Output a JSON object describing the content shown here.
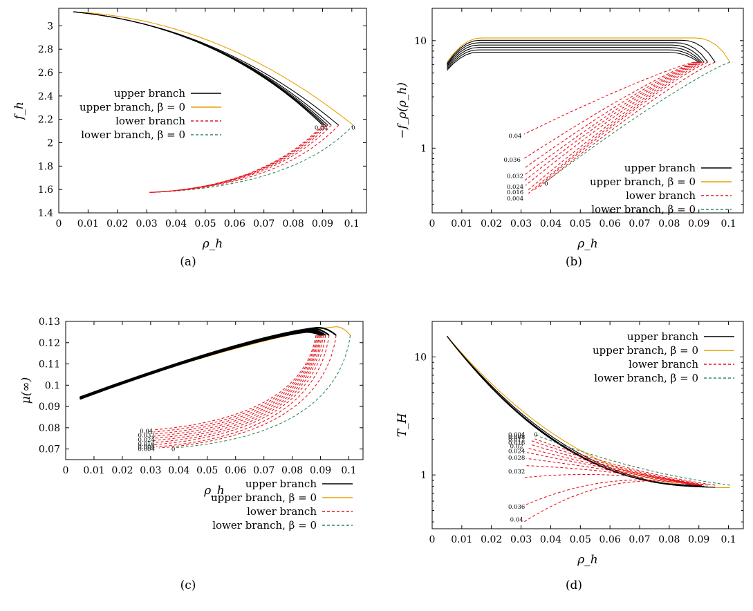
{
  "colors": {
    "upper": "#000000",
    "upper_beta0": "#e8a000",
    "lower": "#e8141e",
    "lower_beta0": "#2e8b57"
  },
  "chart_data": [
    {
      "id": "a",
      "caption": "(a)",
      "type": "line",
      "xlabel": "ρ_h",
      "ylabel": "f_h",
      "xlim": [
        0,
        0.105
      ],
      "ylim": [
        1.4,
        3.15
      ],
      "yscale": "linear",
      "xticks": [
        "0",
        "0.01",
        "0.02",
        "0.03",
        "0.04",
        "0.05",
        "0.06",
        "0.07",
        "0.08",
        "0.09",
        "0.1"
      ],
      "yticks": [
        "1.4",
        "1.6",
        "1.8",
        "2",
        "2.2",
        "2.4",
        "2.6",
        "2.8",
        "3"
      ],
      "legend": [
        "upper branch",
        "upper branch, β = 0",
        "lower branch",
        "lower branch, β = 0"
      ],
      "legend_position": "center-left",
      "upper": {
        "x_start": 0.005,
        "y_start": 3.12,
        "tip_x": [
          0.1005,
          0.0955,
          0.093,
          0.0918,
          0.091,
          0.0905,
          0.09
        ],
        "tip_y": 2.15,
        "x_end": 0.031,
        "y_end": 1.575
      },
      "annotations": [
        {
          "text": "0.04",
          "x": 0.0895,
          "y": 2.13
        },
        {
          "text": "0",
          "x": 0.1005,
          "y": 2.13
        }
      ]
    },
    {
      "id": "b",
      "caption": "(b)",
      "type": "line",
      "xlabel": "ρ_h",
      "ylabel": "−f_ρ(ρ_h)",
      "xlim": [
        0,
        0.105
      ],
      "ylim": [
        0.25,
        20
      ],
      "yscale": "log",
      "xticks": [
        "0",
        "0.01",
        "0.02",
        "0.03",
        "0.04",
        "0.05",
        "0.06",
        "0.07",
        "0.08",
        "0.09",
        "0.1"
      ],
      "yticks": [
        "1",
        "10"
      ],
      "legend": [
        "upper branch",
        "upper branch, β = 0",
        "lower branch",
        "lower branch, β = 0"
      ],
      "legend_position": "bottom-right",
      "upper": {
        "start_x": 0.005,
        "start_y": [
          6.3,
          5.3
        ],
        "top_x": 0.07,
        "top_y": [
          10.6,
          7.8
        ],
        "tip_x": [
          0.1005,
          0.0955,
          0.093,
          0.0918,
          0.091,
          0.0905,
          0.09
        ],
        "tip_y": 6.3
      },
      "lower_end_x": [
        0.038,
        0.036,
        0.034,
        0.0325,
        0.032,
        0.0315,
        0.0312,
        0.031,
        0.031,
        0.031,
        0.031
      ],
      "lower_end_y": [
        0.48,
        0.43,
        0.4,
        0.38,
        0.4,
        0.45,
        0.5,
        0.56,
        0.65,
        0.8,
        1.35
      ],
      "annotations": [
        {
          "text": "0.04",
          "x": 0.028,
          "y": 1.3
        },
        {
          "text": "0.036",
          "x": 0.027,
          "y": 0.78
        },
        {
          "text": "0.032",
          "x": 0.028,
          "y": 0.55
        },
        {
          "text": "0.024",
          "x": 0.028,
          "y": 0.44
        },
        {
          "text": "0.016",
          "x": 0.028,
          "y": 0.39
        },
        {
          "text": "0.004",
          "x": 0.028,
          "y": 0.34
        },
        {
          "text": "0",
          "x": 0.0385,
          "y": 0.47
        }
      ]
    },
    {
      "id": "c",
      "caption": "(c)",
      "type": "line",
      "xlabel": "ρ_h",
      "ylabel": "μ(∞)",
      "xlim": [
        0,
        0.105
      ],
      "ylim": [
        0.065,
        0.13
      ],
      "yscale": "linear",
      "xticks": [
        "0",
        "0.01",
        "0.02",
        "0.03",
        "0.04",
        "0.05",
        "0.06",
        "0.07",
        "0.08",
        "0.09",
        "0.1"
      ],
      "yticks": [
        "0.07",
        "0.08",
        "0.09",
        "0.1",
        "0.11",
        "0.12",
        "0.13"
      ],
      "legend": [
        "upper branch",
        "upper branch, β = 0",
        "lower branch",
        "lower branch, β = 0"
      ],
      "legend_position": "bottom-right",
      "upper": {
        "start_x": 0.005,
        "start_y": [
          0.0945,
          0.0935
        ],
        "top_x": [
          0.0955,
          0.089,
          0.087,
          0.086,
          0.0855,
          0.0852,
          0.085
        ],
        "top_y": [
          0.1275,
          0.125
        ],
        "tip_x": [
          0.1005,
          0.0955,
          0.093,
          0.0918,
          0.091,
          0.0905,
          0.09
        ],
        "tip_y": 0.1235
      },
      "lower_end_x": [
        0.038,
        0.033,
        0.032,
        0.031,
        0.031,
        0.031,
        0.031,
        0.031,
        0.031,
        0.031,
        0.031
      ],
      "lower_end_y": [
        0.0705,
        0.0705,
        0.071,
        0.072,
        0.073,
        0.074,
        0.075,
        0.076,
        0.077,
        0.078,
        0.079
      ],
      "annotations": [
        {
          "text": "0.04",
          "x": 0.0285,
          "y": 0.0785
        },
        {
          "text": "0.032",
          "x": 0.0285,
          "y": 0.0765
        },
        {
          "text": "0.024",
          "x": 0.0285,
          "y": 0.0745
        },
        {
          "text": "0.016",
          "x": 0.0285,
          "y": 0.0725
        },
        {
          "text": "0.008",
          "x": 0.0285,
          "y": 0.0712
        },
        {
          "text": "0.004",
          "x": 0.0285,
          "y": 0.07
        },
        {
          "text": "0",
          "x": 0.038,
          "y": 0.07
        }
      ]
    },
    {
      "id": "d",
      "caption": "(d)",
      "type": "line",
      "xlabel": "ρ_h",
      "ylabel": "T_H",
      "xlim": [
        0,
        0.105
      ],
      "ylim": [
        0.35,
        20
      ],
      "yscale": "log",
      "xticks": [
        "0",
        "0.01",
        "0.02",
        "0.03",
        "0.04",
        "0.05",
        "0.06",
        "0.07",
        "0.08",
        "0.09",
        "0.1"
      ],
      "yticks": [
        "1",
        "10"
      ],
      "legend": [
        "upper branch",
        "upper branch, β = 0",
        "lower branch",
        "lower branch, β = 0"
      ],
      "legend_position": "top-right",
      "upper": {
        "start_x": 0.005,
        "start_y": 15,
        "tip_x": [
          0.1005,
          0.0955,
          0.093,
          0.0918,
          0.091,
          0.0905,
          0.09
        ],
        "tip_y": [
          0.78,
          0.82
        ]
      },
      "lower_end_x": [
        0.0345,
        0.034,
        0.0335,
        0.033,
        0.0325,
        0.032,
        0.0318,
        0.0315,
        0.0312,
        0.031,
        0.031
      ],
      "lower_end_y": [
        2.2,
        2.05,
        1.95,
        1.82,
        1.68,
        1.55,
        1.38,
        1.2,
        0.95,
        0.55,
        0.4
      ],
      "annotations": [
        {
          "text": "0.004",
          "x": 0.0285,
          "y": 2.2
        },
        {
          "text": "0.008",
          "x": 0.0285,
          "y": 2.1
        },
        {
          "text": "0.012",
          "x": 0.0285,
          "y": 2.0
        },
        {
          "text": "0.016",
          "x": 0.0285,
          "y": 1.88
        },
        {
          "text": "0.02",
          "x": 0.0285,
          "y": 1.75
        },
        {
          "text": "0.024",
          "x": 0.0285,
          "y": 1.6
        },
        {
          "text": "0.028",
          "x": 0.0285,
          "y": 1.4
        },
        {
          "text": "0.032",
          "x": 0.0285,
          "y": 1.07
        },
        {
          "text": "0.036",
          "x": 0.0285,
          "y": 0.54
        },
        {
          "text": "0.04",
          "x": 0.0285,
          "y": 0.42
        },
        {
          "text": "0",
          "x": 0.035,
          "y": 2.2
        }
      ]
    }
  ]
}
